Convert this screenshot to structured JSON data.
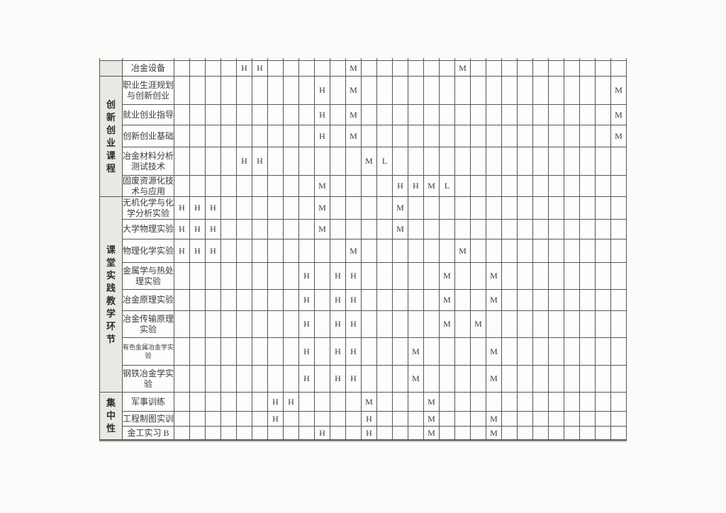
{
  "colors": {
    "page_bg": "#fbfbfa",
    "cell_bg": "#fdfdfc",
    "category_bg": "#eae8e2",
    "border": "#575757",
    "text": "#3b3b3b"
  },
  "table": {
    "data_column_count": 29,
    "marker_values_used": [
      "H",
      "M",
      "L"
    ],
    "categories": [
      {
        "label": ""
      },
      {
        "label": "创新创业课程"
      },
      {
        "label": "课堂实践教学环节"
      },
      {
        "label": "集中性"
      }
    ],
    "rows": [
      {
        "course": "冶金设备",
        "lines": [
          "冶金设备"
        ],
        "marks": [
          {
            "c": 5,
            "v": "H"
          },
          {
            "c": 6,
            "v": "H"
          },
          {
            "c": 12,
            "v": "M"
          },
          {
            "c": 19,
            "v": "M"
          }
        ]
      },
      {
        "course": "职业生涯规划与创新创业",
        "lines": [
          "职业生涯规划",
          "与创新创业"
        ],
        "marks": [
          {
            "c": 10,
            "v": "H"
          },
          {
            "c": 12,
            "v": "M"
          },
          {
            "c": 29,
            "v": "M"
          }
        ]
      },
      {
        "course": "就业创业指导",
        "lines": [
          "就业创业指导"
        ],
        "marks": [
          {
            "c": 10,
            "v": "H"
          },
          {
            "c": 12,
            "v": "M"
          },
          {
            "c": 29,
            "v": "M"
          }
        ]
      },
      {
        "course": "创新创业基础",
        "lines": [
          "创新创业基础"
        ],
        "marks": [
          {
            "c": 10,
            "v": "H"
          },
          {
            "c": 12,
            "v": "M"
          },
          {
            "c": 29,
            "v": "M"
          }
        ]
      },
      {
        "course": "冶金材料分析测试技术",
        "lines": [
          "冶金材料分析",
          "测试技术"
        ],
        "marks": [
          {
            "c": 5,
            "v": "H"
          },
          {
            "c": 6,
            "v": "H"
          },
          {
            "c": 13,
            "v": "M"
          },
          {
            "c": 14,
            "v": "L"
          }
        ]
      },
      {
        "course": "固废资源化技术与应用",
        "lines": [
          "固废资源化技",
          "术与应用"
        ],
        "marks": [
          {
            "c": 10,
            "v": "M"
          },
          {
            "c": 15,
            "v": "H"
          },
          {
            "c": 16,
            "v": "H"
          },
          {
            "c": 17,
            "v": "M"
          },
          {
            "c": 18,
            "v": "L"
          }
        ]
      },
      {
        "course": "无机化学与化学分析实验",
        "lines": [
          "无机化学与化",
          "学分析实验"
        ],
        "marks": [
          {
            "c": 1,
            "v": "H"
          },
          {
            "c": 2,
            "v": "H"
          },
          {
            "c": 3,
            "v": "H"
          },
          {
            "c": 10,
            "v": "M"
          },
          {
            "c": 15,
            "v": "M"
          }
        ]
      },
      {
        "course": "大学物理实验",
        "lines": [
          "大学物理实验"
        ],
        "marks": [
          {
            "c": 1,
            "v": "H"
          },
          {
            "c": 2,
            "v": "H"
          },
          {
            "c": 3,
            "v": "H"
          },
          {
            "c": 10,
            "v": "M"
          },
          {
            "c": 15,
            "v": "M"
          }
        ]
      },
      {
        "course": "物理化学实验",
        "lines": [
          "物理化学实验"
        ],
        "marks": [
          {
            "c": 1,
            "v": "H"
          },
          {
            "c": 2,
            "v": "H"
          },
          {
            "c": 3,
            "v": "H"
          },
          {
            "c": 12,
            "v": "M"
          },
          {
            "c": 19,
            "v": "M"
          }
        ]
      },
      {
        "course": "金属学与热处理实验",
        "lines": [
          "金属学与热处",
          "理实验"
        ],
        "marks": [
          {
            "c": 9,
            "v": "H"
          },
          {
            "c": 11,
            "v": "H"
          },
          {
            "c": 12,
            "v": "H"
          },
          {
            "c": 18,
            "v": "M"
          },
          {
            "c": 21,
            "v": "M"
          }
        ]
      },
      {
        "course": "冶金原理实验",
        "lines": [
          "冶金原理实验"
        ],
        "marks": [
          {
            "c": 9,
            "v": "H"
          },
          {
            "c": 11,
            "v": "H"
          },
          {
            "c": 12,
            "v": "H"
          },
          {
            "c": 18,
            "v": "M"
          },
          {
            "c": 21,
            "v": "M"
          }
        ]
      },
      {
        "course": "冶金传输原理实验",
        "lines": [
          "冶金传输原理",
          "实验"
        ],
        "marks": [
          {
            "c": 9,
            "v": "H"
          },
          {
            "c": 11,
            "v": "H"
          },
          {
            "c": 12,
            "v": "H"
          },
          {
            "c": 18,
            "v": "M"
          },
          {
            "c": 20,
            "v": "M"
          }
        ]
      },
      {
        "course": "有色金属冶金学实验",
        "small": true,
        "lines": [
          "有色金属冶金学实",
          "验"
        ],
        "marks": [
          {
            "c": 9,
            "v": "H"
          },
          {
            "c": 11,
            "v": "H"
          },
          {
            "c": 12,
            "v": "H"
          },
          {
            "c": 16,
            "v": "M"
          },
          {
            "c": 21,
            "v": "M"
          }
        ]
      },
      {
        "course": "钢铁冶金学实验",
        "lines": [
          "钢铁冶金学实",
          "验"
        ],
        "marks": [
          {
            "c": 9,
            "v": "H"
          },
          {
            "c": 11,
            "v": "H"
          },
          {
            "c": 12,
            "v": "H"
          },
          {
            "c": 16,
            "v": "M"
          },
          {
            "c": 21,
            "v": "M"
          }
        ]
      },
      {
        "course": "军事训练",
        "lines": [
          "军事训练"
        ],
        "marks": [
          {
            "c": 7,
            "v": "H"
          },
          {
            "c": 8,
            "v": "H"
          },
          {
            "c": 13,
            "v": "M"
          },
          {
            "c": 17,
            "v": "M"
          }
        ]
      },
      {
        "course": "工程制图实训",
        "lines": [
          "工程制图实训"
        ],
        "marks": [
          {
            "c": 7,
            "v": "H"
          },
          {
            "c": 13,
            "v": "H"
          },
          {
            "c": 17,
            "v": "M"
          },
          {
            "c": 21,
            "v": "M"
          }
        ]
      },
      {
        "course": "金工实习 B",
        "lines": [
          "金工实习 B"
        ],
        "marks": [
          {
            "c": 10,
            "v": "H"
          },
          {
            "c": 13,
            "v": "H"
          },
          {
            "c": 17,
            "v": "M"
          },
          {
            "c": 21,
            "v": "M"
          }
        ]
      }
    ]
  }
}
